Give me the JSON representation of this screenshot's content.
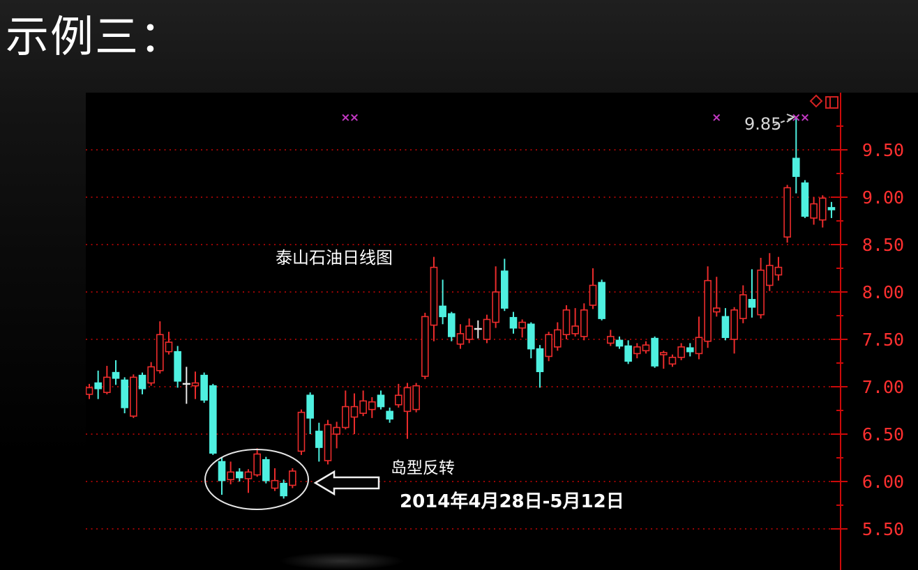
{
  "page": {
    "title": "示例三："
  },
  "chart_data": {
    "type": "candlestick",
    "title": "泰山石油日线图",
    "x_axis": {
      "labels_visible": false
    },
    "y_axis": {
      "position": "right",
      "ticks": [
        9.5,
        9.0,
        8.5,
        8.0,
        7.5,
        7.0,
        6.5,
        6.0,
        5.5
      ],
      "minor_tick_step": 0.25,
      "visible_range": [
        5.07,
        10.1
      ],
      "grid": "dotted",
      "tick_label_format": "0.00"
    },
    "annotations": {
      "peak_label": "9.85",
      "island_label": "岛型反转",
      "date_range_label": "2014年4月28日-5月12日"
    },
    "sell_markers": {
      "symbol": "×",
      "candle_indexes": [
        29,
        30,
        71,
        80,
        81
      ]
    },
    "columns": [
      "open",
      "high",
      "low",
      "close",
      "direction(u=up-red-hollow,d=down-cyan-filled,j=doji-white-cross)"
    ],
    "candles": [
      [
        6.92,
        7.03,
        6.87,
        6.99,
        "u"
      ],
      [
        7.04,
        7.17,
        6.87,
        6.98,
        "d"
      ],
      [
        6.94,
        7.22,
        6.92,
        7.1,
        "u"
      ],
      [
        7.15,
        7.28,
        7.02,
        7.09,
        "d"
      ],
      [
        7.07,
        7.1,
        6.72,
        6.78,
        "d"
      ],
      [
        6.69,
        7.13,
        6.67,
        7.1,
        "u"
      ],
      [
        7.12,
        7.15,
        6.92,
        6.98,
        "d"
      ],
      [
        7.04,
        7.26,
        7.01,
        7.21,
        "u"
      ],
      [
        7.17,
        7.69,
        7.14,
        7.55,
        "u"
      ],
      [
        7.37,
        7.58,
        7.34,
        7.47,
        "u"
      ],
      [
        7.37,
        7.43,
        6.99,
        7.06,
        "d"
      ],
      [
        7.05,
        7.21,
        6.82,
        7.03,
        "j"
      ],
      [
        7.01,
        7.16,
        6.87,
        7.04,
        "u"
      ],
      [
        7.12,
        7.15,
        6.83,
        6.86,
        "d"
      ],
      [
        7.01,
        7.03,
        6.28,
        6.3,
        "d"
      ],
      [
        6.21,
        6.25,
        5.86,
        6.01,
        "d"
      ],
      [
        6.02,
        6.21,
        5.97,
        6.1,
        "u"
      ],
      [
        6.1,
        6.14,
        6.0,
        6.04,
        "d"
      ],
      [
        6.03,
        6.13,
        5.88,
        6.1,
        "u"
      ],
      [
        6.07,
        6.35,
        6.05,
        6.29,
        "u"
      ],
      [
        6.23,
        6.26,
        5.98,
        6.01,
        "d"
      ],
      [
        5.93,
        6.14,
        5.9,
        6.01,
        "u"
      ],
      [
        5.98,
        6.02,
        5.82,
        5.85,
        "d"
      ],
      [
        5.96,
        6.14,
        5.93,
        6.11,
        "u"
      ],
      [
        6.32,
        6.76,
        6.28,
        6.73,
        "u"
      ],
      [
        6.91,
        6.94,
        6.5,
        6.67,
        "d"
      ],
      [
        6.53,
        6.62,
        6.21,
        6.36,
        "d"
      ],
      [
        6.22,
        6.65,
        6.18,
        6.6,
        "u"
      ],
      [
        6.5,
        6.63,
        6.35,
        6.57,
        "u"
      ],
      [
        6.57,
        6.96,
        6.55,
        6.79,
        "u"
      ],
      [
        6.68,
        6.93,
        6.5,
        6.79,
        "u"
      ],
      [
        6.72,
        6.96,
        6.69,
        6.85,
        "u"
      ],
      [
        6.76,
        6.89,
        6.67,
        6.84,
        "u"
      ],
      [
        6.91,
        6.96,
        6.76,
        6.79,
        "d"
      ],
      [
        6.74,
        6.78,
        6.62,
        6.66,
        "d"
      ],
      [
        6.81,
        7.03,
        6.78,
        6.91,
        "u"
      ],
      [
        6.74,
        7.04,
        6.45,
        6.99,
        "u"
      ],
      [
        6.76,
        7.04,
        6.73,
        7.01,
        "u"
      ],
      [
        7.11,
        7.78,
        7.08,
        7.74,
        "u"
      ],
      [
        7.65,
        8.37,
        7.48,
        8.26,
        "u"
      ],
      [
        7.85,
        8.13,
        7.66,
        7.74,
        "d"
      ],
      [
        7.77,
        7.79,
        7.48,
        7.53,
        "d"
      ],
      [
        7.45,
        7.66,
        7.4,
        7.56,
        "u"
      ],
      [
        7.5,
        7.72,
        7.46,
        7.64,
        "u"
      ],
      [
        7.61,
        7.7,
        7.51,
        7.61,
        "j"
      ],
      [
        7.5,
        7.76,
        7.46,
        7.71,
        "u"
      ],
      [
        7.68,
        8.27,
        7.62,
        8.0,
        "u"
      ],
      [
        8.22,
        8.35,
        7.8,
        7.83,
        "d"
      ],
      [
        7.73,
        7.79,
        7.56,
        7.62,
        "d"
      ],
      [
        7.62,
        7.71,
        7.52,
        7.68,
        "u"
      ],
      [
        7.66,
        7.68,
        7.3,
        7.4,
        "d"
      ],
      [
        7.4,
        7.44,
        6.99,
        7.16,
        "d"
      ],
      [
        7.32,
        7.58,
        7.27,
        7.55,
        "u"
      ],
      [
        7.42,
        7.68,
        7.38,
        7.6,
        "u"
      ],
      [
        7.55,
        7.86,
        7.5,
        7.81,
        "u"
      ],
      [
        7.56,
        7.83,
        7.53,
        7.64,
        "u"
      ],
      [
        7.53,
        7.88,
        7.49,
        7.81,
        "u"
      ],
      [
        7.86,
        8.25,
        7.82,
        8.07,
        "u"
      ],
      [
        8.1,
        8.13,
        7.7,
        7.72,
        "d"
      ],
      [
        7.46,
        7.6,
        7.43,
        7.53,
        "u"
      ],
      [
        7.49,
        7.53,
        7.4,
        7.43,
        "d"
      ],
      [
        7.43,
        7.49,
        7.24,
        7.27,
        "d"
      ],
      [
        7.35,
        7.46,
        7.3,
        7.42,
        "u"
      ],
      [
        7.38,
        7.48,
        7.35,
        7.44,
        "u"
      ],
      [
        7.51,
        7.53,
        7.2,
        7.22,
        "d"
      ],
      [
        7.34,
        7.38,
        7.19,
        7.36,
        "u"
      ],
      [
        7.24,
        7.34,
        7.21,
        7.31,
        "u"
      ],
      [
        7.31,
        7.46,
        7.28,
        7.42,
        "u"
      ],
      [
        7.41,
        7.46,
        7.32,
        7.37,
        "d"
      ],
      [
        7.35,
        7.74,
        7.29,
        7.52,
        "u"
      ],
      [
        7.48,
        8.27,
        7.41,
        8.12,
        "u"
      ],
      [
        7.79,
        8.16,
        7.74,
        7.83,
        "u"
      ],
      [
        7.74,
        7.83,
        7.49,
        7.52,
        "d"
      ],
      [
        7.5,
        7.84,
        7.35,
        7.81,
        "u"
      ],
      [
        7.72,
        8.07,
        7.67,
        7.97,
        "u"
      ],
      [
        7.92,
        8.24,
        7.73,
        7.84,
        "d"
      ],
      [
        7.76,
        8.36,
        7.72,
        8.23,
        "u"
      ],
      [
        8.07,
        8.41,
        8.01,
        8.28,
        "u"
      ],
      [
        8.18,
        8.37,
        8.12,
        8.26,
        "u"
      ],
      [
        8.58,
        9.13,
        8.52,
        9.1,
        "u"
      ],
      [
        9.41,
        9.85,
        9.04,
        9.22,
        "d"
      ],
      [
        9.15,
        9.18,
        8.78,
        8.8,
        "d"
      ],
      [
        8.78,
        9.0,
        8.71,
        8.93,
        "u"
      ],
      [
        8.76,
        9.02,
        8.68,
        8.99,
        "u"
      ],
      [
        8.89,
        8.95,
        8.78,
        8.87,
        "d"
      ]
    ],
    "colors": {
      "up": "#ec2c2c",
      "down": "#4ef0e0",
      "doji": "#e8e8e8",
      "grid": "#9a0505",
      "axis": "#cc0909",
      "tick_label": "#ff3030",
      "marker": "#c238c2",
      "annotation_text": "#ffffff",
      "peak_label_text": "#d8d8d8",
      "background": "#000000"
    }
  }
}
